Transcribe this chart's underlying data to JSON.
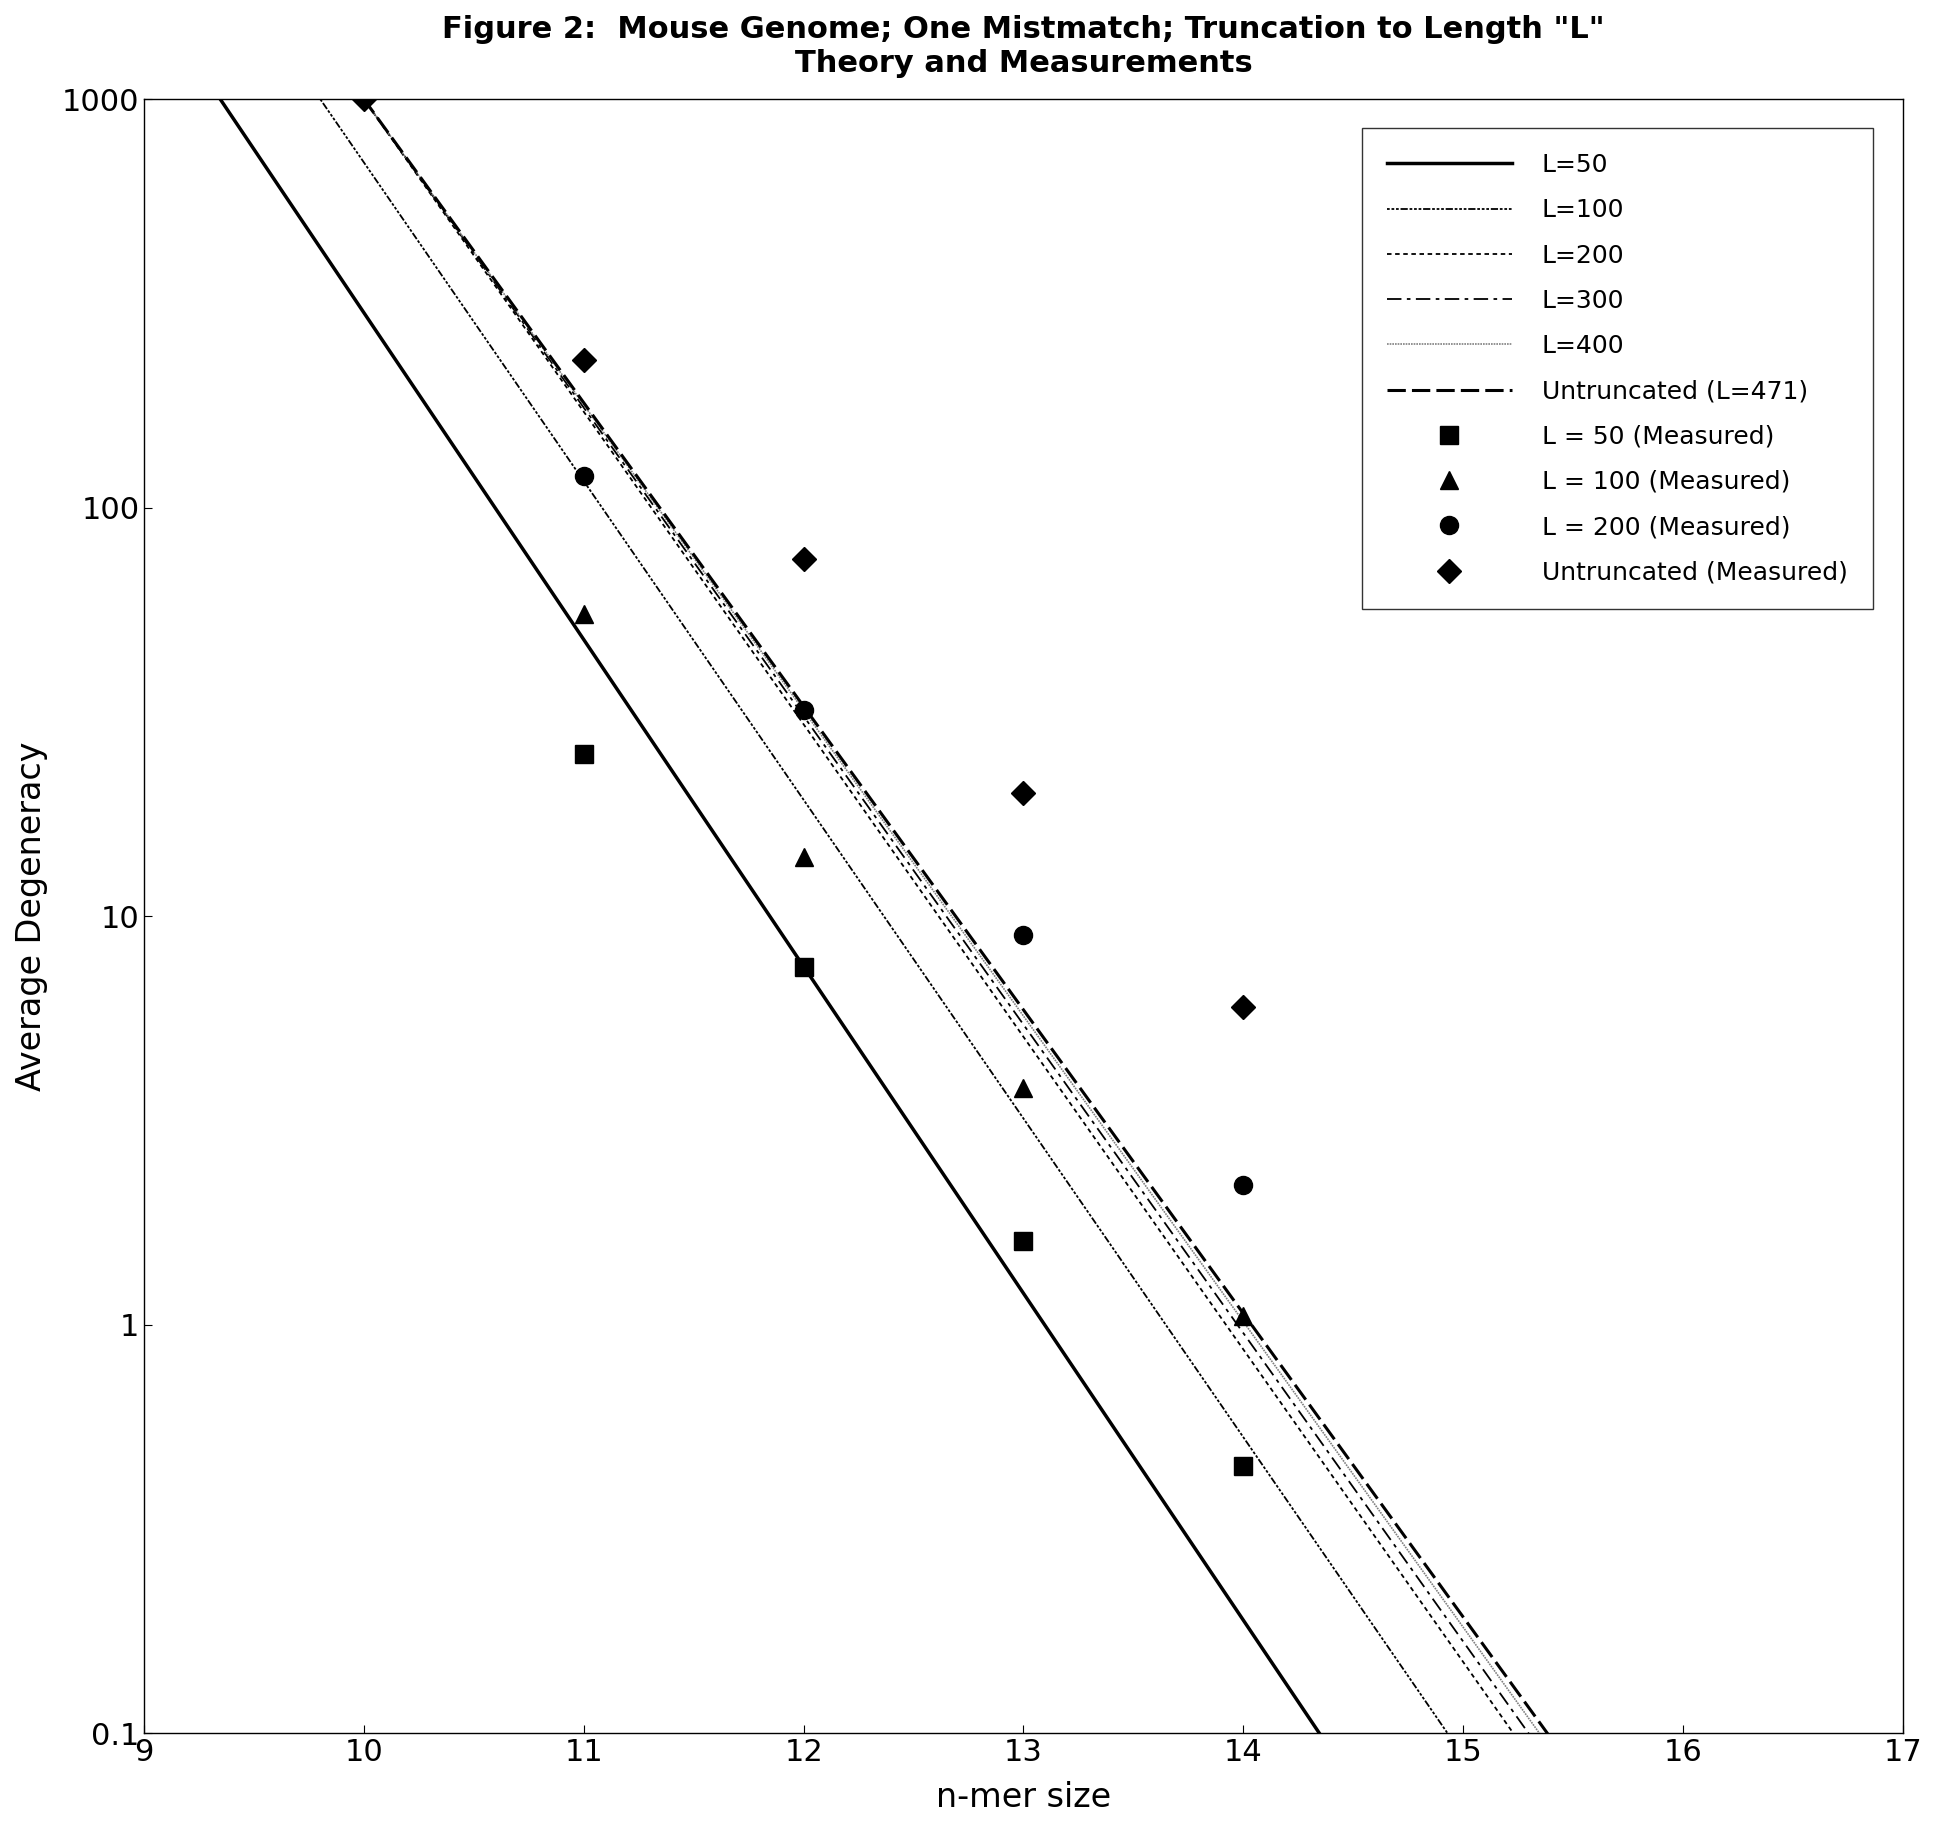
{
  "title_line1": "Figure 2:  Mouse Genome; One Mistmatch; Truncation to Length \"L\"",
  "title_line2": "Theory and Measurements",
  "xlabel": "n-mer size",
  "ylabel": "Average Degeneracy",
  "xlim": [
    9,
    17
  ],
  "ylim_log": [
    0.1,
    1000
  ],
  "xticks": [
    9,
    10,
    11,
    12,
    13,
    14,
    15,
    16,
    17
  ],
  "yticks": [
    0.1,
    1,
    10,
    100,
    1000
  ],
  "background_color": "#ffffff",
  "theory_params": [
    {
      "label": "L=50",
      "A": 300,
      "slope": -0.8,
      "style": "solid",
      "color": "black",
      "lw": 2.5
    },
    {
      "label": "L=100",
      "A": 700,
      "slope": -0.78,
      "style": "finedot",
      "color": "black",
      "lw": 1.3
    },
    {
      "label": "L=200",
      "A": 1000,
      "slope": -0.765,
      "style": "dotted",
      "color": "black",
      "lw": 1.3
    },
    {
      "label": "L=300",
      "A": 1000,
      "slope": -0.755,
      "style": "dashdot",
      "color": "black",
      "lw": 1.3
    },
    {
      "label": "L=400",
      "A": 1000,
      "slope": -0.748,
      "style": "graydense",
      "color": "gray",
      "lw": 1.2
    },
    {
      "label": "Untruncated (L=471)",
      "A": 1000,
      "slope": -0.743,
      "style": "heavydash",
      "color": "black",
      "lw": 2.2
    }
  ],
  "measured_data": [
    {
      "label": "L = 50 (Measured)",
      "marker": "s",
      "ms": 13,
      "x": [
        11,
        12,
        13,
        14
      ],
      "y": [
        25.0,
        7.5,
        1.6,
        0.45
      ]
    },
    {
      "label": "L = 100 (Measured)",
      "marker": "^",
      "ms": 13,
      "x": [
        11,
        12,
        13,
        14
      ],
      "y": [
        55.0,
        14.0,
        3.8,
        1.05
      ]
    },
    {
      "label": "L = 200 (Measured)",
      "marker": "o",
      "ms": 13,
      "x": [
        11,
        12,
        13,
        14
      ],
      "y": [
        120.0,
        32.0,
        9.0,
        2.2
      ]
    },
    {
      "label": "Untruncated (Measured)",
      "marker": "D",
      "ms": 12,
      "x": [
        10,
        11,
        12,
        13,
        14
      ],
      "y": [
        1000.0,
        230.0,
        75.0,
        20.0,
        6.0
      ]
    }
  ]
}
